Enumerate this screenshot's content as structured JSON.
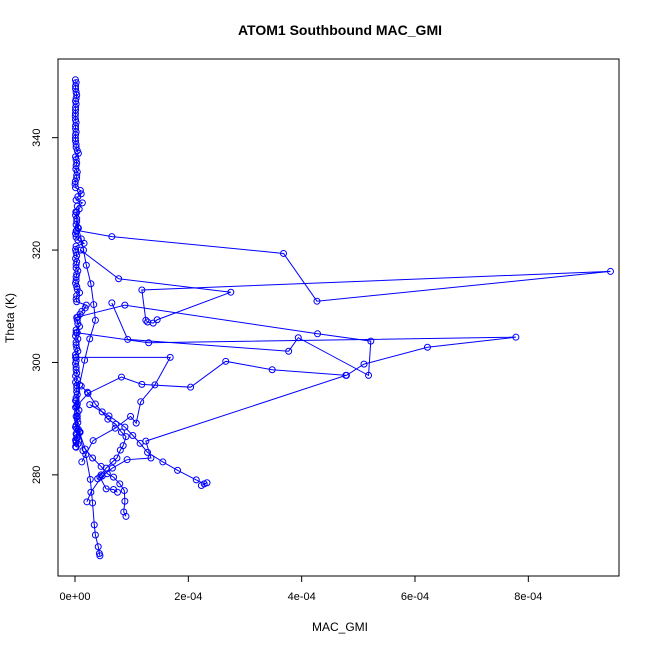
{
  "chart_data": {
    "type": "line",
    "title": "ATOM1 Southbound MAC_GMI",
    "xlabel": "MAC_GMI",
    "ylabel": "Theta (K)",
    "xlim": [
      -3e-05,
      0.00096
    ],
    "ylim": [
      262,
      354
    ],
    "x_ticks": [
      0,
      0.0002,
      0.0004,
      0.0006,
      0.0008
    ],
    "x_tick_labels": [
      "0e+00",
      "2e-04",
      "4e-04",
      "6e-04",
      "8e-04"
    ],
    "y_ticks": [
      280,
      300,
      320,
      340
    ],
    "y_tick_labels": [
      "280",
      "300",
      "320",
      "340"
    ],
    "grid": false,
    "legend": "none",
    "series_color": "#0000ff",
    "marker": "open-circle",
    "series": [
      {
        "x": [
          8e-07,
          2e-06,
          1e-06,
          1e-06,
          2e-06,
          3e-06,
          2e-06,
          1e-06,
          2e-06,
          1e-06,
          1e-06,
          8e-07,
          5e-07,
          9e-07,
          2e-06,
          1e-06,
          1e-06,
          2e-06,
          1e-06,
          7e-07,
          1e-06,
          2e-06,
          2e-06,
          4e-06,
          6e-06,
          1e-06,
          2e-06,
          3e-06,
          2e-06,
          1.5e-06,
          4e-06,
          3e-06,
          2.8e-06,
          5.5e-07,
          1e-07,
          9.5e-07,
          9.5e-06,
          1.1e-05,
          5e-06,
          2e-06,
          1.3e-05,
          4e-06,
          7.4e-06,
          3e-06,
          1e-06,
          3e-06,
          3e-06,
          2e-06,
          5e-06,
          2e-06,
          1e-06,
          2e-06,
          5e-06,
          1.6e-05,
          2e-06,
          1e-06,
          2e-06,
          3e-06,
          1e-06,
          3e-06,
          2e-06,
          2e-06,
          5e-06,
          3e-06,
          2e-06,
          2e-06,
          1e-06,
          3e-06,
          4e-06,
          8e-06,
          3e-06,
          2e-06,
          3e-06,
          2e-05,
          1.8e-05,
          1.2e-05,
          9e-06,
          3e-06,
          4e-06,
          5e-06,
          8e-06,
          2e-06,
          4e-06,
          1e-06,
          5e-06,
          2e-06,
          2e-06,
          3e-06,
          5e-06,
          1e-06,
          2e-06,
          2e-06,
          1e-06,
          2e-06,
          2e-06,
          3e-06,
          1e-06,
          4e-06,
          1e-06,
          3e-06,
          3e-06,
          3e-06,
          4e-06,
          2e-06,
          2e-06,
          4e-06,
          3e-06,
          7e-06,
          4e-06,
          4e-06,
          4e-06,
          5e-06,
          2e-06,
          3e-06,
          8e-06,
          3e-06,
          4e-06,
          2e-06,
          5e-06,
          2e-06
        ],
        "y": [
          350.3,
          349.8,
          349.2,
          348.7,
          348.1,
          347.6,
          347.0,
          346.5,
          346.0,
          345.4,
          344.9,
          344.3,
          343.8,
          343.2,
          342.7,
          342.1,
          341.6,
          341.0,
          340.5,
          339.9,
          339.4,
          338.8,
          338.3,
          337.7,
          337.2,
          336.6,
          336.1,
          335.5,
          335.0,
          334.4,
          333.9,
          333.3,
          332.8,
          332.2,
          331.7,
          331.1,
          330.6,
          330.0,
          329.5,
          328.9,
          328.4,
          327.8,
          327.3,
          326.7,
          326.2,
          325.6,
          325.1,
          324.5,
          324.0,
          323.4,
          322.9,
          322.3,
          321.8,
          321.2,
          320.7,
          320.1,
          319.6,
          319.0,
          318.5,
          317.9,
          317.4,
          316.8,
          316.3,
          315.7,
          315.2,
          314.6,
          314.1,
          313.5,
          313.0,
          312.4,
          311.9,
          311.3,
          310.8,
          310.2,
          309.7,
          309.1,
          308.6,
          308.0,
          307.5,
          306.9,
          306.4,
          305.8,
          305.3,
          304.7,
          304.2,
          303.6,
          303.1,
          302.5,
          302.0,
          301.4,
          300.9,
          300.3,
          299.8,
          299.2,
          298.7,
          298.1,
          297.6,
          297.0,
          296.5,
          295.9,
          295.4,
          294.8,
          294.3,
          293.7,
          293.2,
          292.6,
          292.1,
          291.5,
          291.0,
          290.4,
          289.9,
          289.3,
          288.8,
          288.2,
          287.7,
          287.1,
          286.6,
          286.0,
          285.5,
          284.9
        ]
      },
      {
        "x": [
          1.5e-06,
          6e-06,
          1.1e-05,
          1.5e-05,
          2e-05,
          2.8e-05,
          3.3e-05,
          3.6e-05,
          2.6e-05,
          1.7e-05,
          8e-06,
          3e-06,
          1e-06
        ],
        "y": [
          326.8,
          323.9,
          322.0,
          320.0,
          317.3,
          314.0,
          310.3,
          307.5,
          304.2,
          300.4,
          296.0,
          292.2,
          288.5
        ]
      },
      {
        "x": [
          3e-06,
          6.5e-05,
          0.000368,
          0.000427,
          0.000945,
          0.000118,
          0.000125,
          0.000128,
          0.000138,
          0.000145,
          0.000275,
          7.7e-05,
          1e-05
        ],
        "y": [
          323.5,
          322.4,
          319.4,
          310.9,
          316.2,
          312.9,
          307.5,
          307.2,
          307.0,
          307.6,
          312.5,
          314.9,
          320.0
        ]
      },
      {
        "x": [
          5e-06,
          8.8e-05,
          0.000428,
          0.000522,
          0.000518,
          0.000394,
          0.000377,
          9.3e-05,
          6.5e-05
        ],
        "y": [
          308.1,
          310.2,
          305.1,
          303.8,
          297.7,
          304.4,
          302.0,
          304.1,
          310.6
        ]
      },
      {
        "x": [
          2e-06,
          0.00013,
          0.000778,
          0.000622,
          0.00051,
          0.000479,
          0.000348,
          0.000266,
          0.000204,
          0.000118,
          8.2e-05,
          2.3e-05,
          1e-06
        ],
        "y": [
          305.3,
          303.5,
          304.5,
          302.7,
          299.7,
          297.7,
          298.7,
          300.2,
          295.6,
          296.1,
          297.4,
          294.5,
          292.0
        ]
      },
      {
        "x": [
          1e-06,
          0.000168,
          0.000141,
          0.000116,
          0.000108,
          9.8e-05,
          7.1e-05,
          3.2e-05,
          1.2e-05
        ],
        "y": [
          300.9,
          300.9,
          296.0,
          293.0,
          289.2,
          290.4,
          288.3,
          286.1,
          282.3
        ]
      },
      {
        "x": [
          0.000478,
          0.000125,
          0.000134,
          9.2e-05,
          6.6e-05,
          4.8e-05,
          2.8e-05,
          2.1e-05
        ],
        "y": [
          297.7,
          286.0,
          283.0,
          282.7,
          281.2,
          279.8,
          276.9,
          275.2
        ]
      },
      {
        "x": [
          1.1e-05,
          2.2e-05,
          3.6e-05,
          4.8e-05,
          5.8e-05,
          7.2e-05,
          8.2e-05,
          9e-05,
          8.5e-05,
          8e-05,
          7.4e-05,
          6.7e-05,
          5.5e-05,
          4.6e-05,
          4e-05,
          4.4e-05,
          5.5e-05,
          6.8e-05,
          7.5e-05
        ],
        "y": [
          295.8,
          294.7,
          292.6,
          291.2,
          289.9,
          289.0,
          287.6,
          286.8,
          285.2,
          284.4,
          283.0,
          282.4,
          281.2,
          280.0,
          279.3,
          279.6,
          277.5,
          277.4,
          276.9
        ]
      },
      {
        "x": [
          2.6e-05,
          6e-05,
          8.8e-05,
          0.000102,
          0.000115,
          0.000128,
          0.000155,
          0.000181,
          0.000214,
          0.000228,
          0.000233,
          0.000223
        ],
        "y": [
          292.5,
          290.5,
          288.5,
          287.0,
          285.6,
          284.0,
          282.3,
          280.8,
          279.1,
          278.4,
          278.6,
          278.1
        ]
      },
      {
        "x": [
          8e-06,
          1.8e-05,
          3.1e-05,
          4.6e-05,
          5.7e-05,
          6.8e-05,
          7.9e-05,
          8.7e-05,
          8.8e-05,
          8.6e-05,
          9e-05
        ],
        "y": [
          287.5,
          284.6,
          283.0,
          281.5,
          280.2,
          279.6,
          278.4,
          277.2,
          275.3,
          273.4,
          272.6
        ]
      },
      {
        "x": [
          1e-06,
          2e-06,
          6e-06,
          9e-06,
          1.4e-05,
          1.9e-05,
          2.7e-05,
          3.1e-05,
          3.4e-05,
          3.6e-05,
          4.1e-05,
          4.3e-05,
          4.4e-05
        ],
        "y": [
          293.2,
          290.4,
          288.1,
          287.6,
          284.3,
          283.6,
          279.2,
          275.0,
          271.1,
          269.3,
          267.2,
          266.0,
          265.6
        ]
      },
      {
        "x": [
          2e-06,
          3e-06,
          1e-06,
          2e-06,
          1e-06
        ],
        "y": [
          287.3,
          286.6,
          286.2,
          285.7,
          285.0
        ]
      }
    ]
  }
}
